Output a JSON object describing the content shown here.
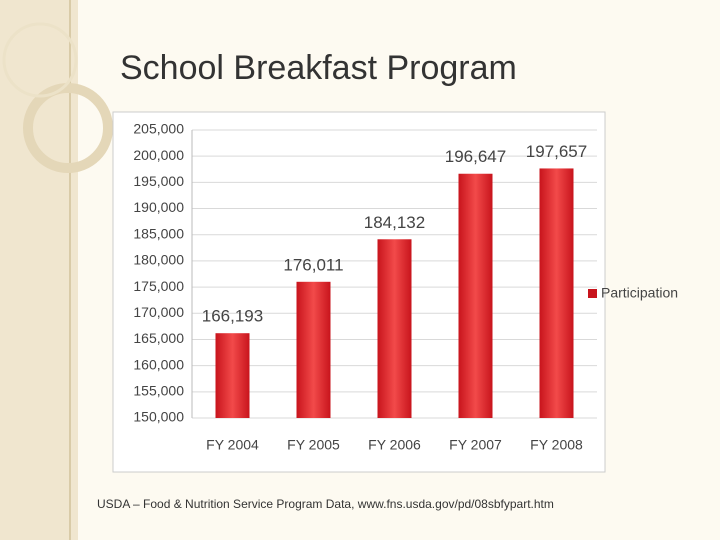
{
  "chart_data": {
    "type": "bar",
    "title": "School Breakfast Program",
    "categories": [
      "FY 2004",
      "FY 2005",
      "FY 2006",
      "FY 2007",
      "FY 2008"
    ],
    "series": [
      {
        "name": "Participation",
        "color": "#c8141c",
        "values": [
          166193,
          176011,
          184132,
          196647,
          197657
        ],
        "value_labels": [
          "166,193",
          "176,011",
          "184,132",
          "196,647",
          "197,657"
        ]
      }
    ],
    "ylim": [
      150000,
      205000
    ],
    "yticks": [
      {
        "value": 150000,
        "label": "150,000"
      },
      {
        "value": 155000,
        "label": "155,000"
      },
      {
        "value": 160000,
        "label": "160,000"
      },
      {
        "value": 165000,
        "label": "165,000"
      },
      {
        "value": 170000,
        "label": "170,000"
      },
      {
        "value": 175000,
        "label": "175,000"
      },
      {
        "value": 180000,
        "label": "180,000"
      },
      {
        "value": 185000,
        "label": "185,000"
      },
      {
        "value": 190000,
        "label": "190,000"
      },
      {
        "value": 195000,
        "label": "195,000"
      },
      {
        "value": 200000,
        "label": "200,000"
      },
      {
        "value": 205000,
        "label": "205,000"
      }
    ],
    "grid": true,
    "legend": "right"
  },
  "source": "USDA – Food & Nutrition Service Program Data, www.fns.usda.gov/pd/08sbfypart.htm"
}
